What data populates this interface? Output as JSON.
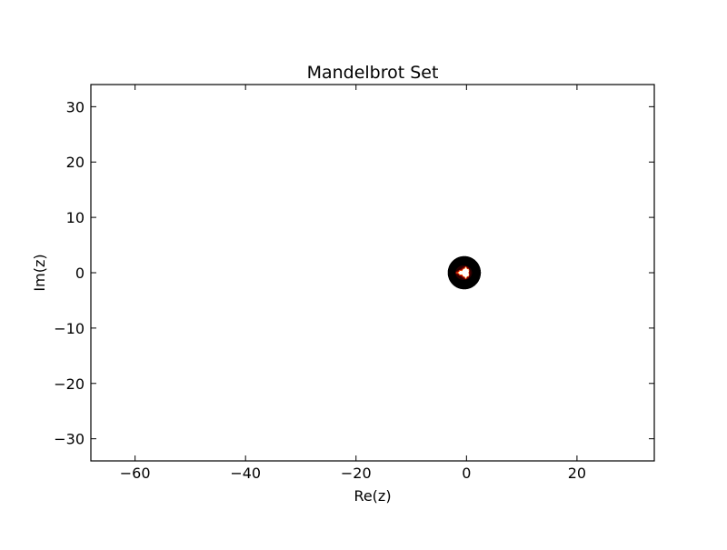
{
  "chart_data": {
    "type": "heatmap",
    "title": "Mandelbrot Set",
    "xlabel": "Re(z)",
    "ylabel": "Im(z)",
    "xlim": [
      -68,
      34
    ],
    "ylim": [
      -34,
      34
    ],
    "xticks": [
      -60,
      -40,
      -20,
      0,
      20
    ],
    "yticks": [
      -30,
      -20,
      -10,
      0,
      10,
      20,
      30
    ],
    "grid": false,
    "colormap": "hot",
    "escape_radius": 3,
    "region_center": [
      -0.4,
      0
    ],
    "colors": {
      "background": "#ffffff",
      "set_interior": "#000000",
      "hot_mid": "#cc1100",
      "hot_high": "#ff9900",
      "hot_peak": "#ffffff"
    }
  }
}
